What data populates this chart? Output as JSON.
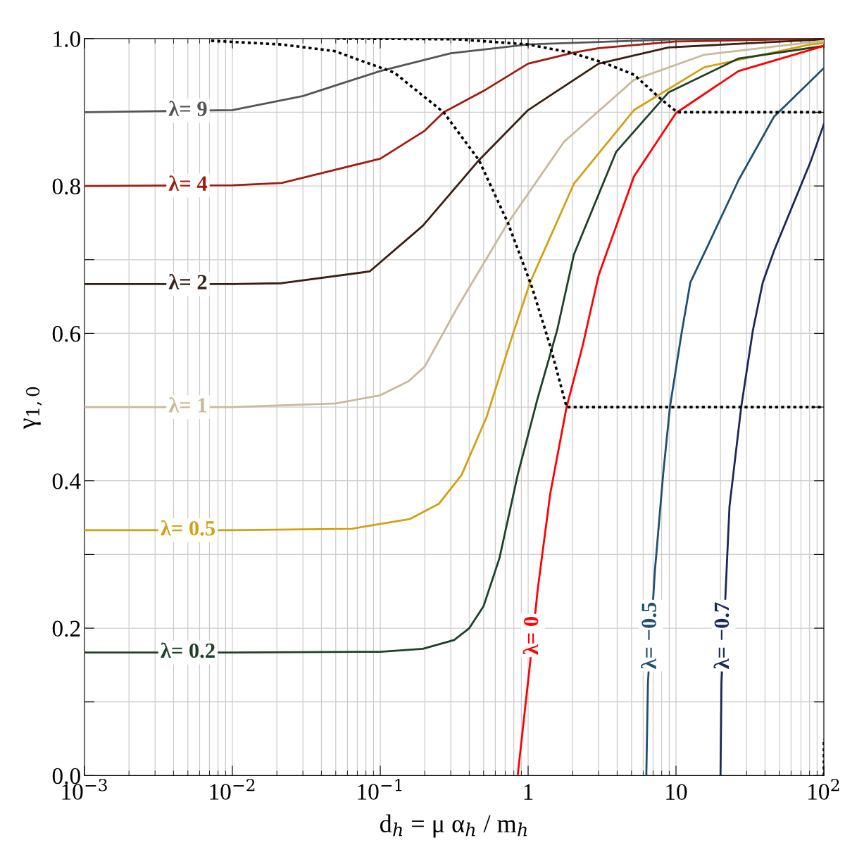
{
  "chart_data": {
    "type": "line",
    "xlabel": "d$_{h}$ = μ α$_{h}$ / m$_{h}$",
    "ylabel": "γ$_{1,0}$",
    "log": "x",
    "grid": true,
    "legend": false,
    "marker": "none",
    "line_style": "solid",
    "xlim": [
      0.001,
      100
    ],
    "ylim": [
      0,
      1
    ],
    "xticks": [
      {
        "value": 0.001,
        "label": "10$^{−3}$"
      },
      {
        "value": 0.01,
        "label": "10$^{−2}$"
      },
      {
        "value": 0.1,
        "label": "10$^{−1}$"
      },
      1,
      10,
      {
        "value": 100,
        "label": "10$^{2}$"
      }
    ],
    "yticks": [
      {
        "value": 0,
        "label": "0.0"
      },
      {
        "value": 0.1,
        "label": null
      },
      0.2,
      {
        "value": 0.3,
        "label": null
      },
      0.4,
      {
        "value": 0.5,
        "label": null
      },
      0.6,
      {
        "value": 0.7,
        "label": null
      },
      0.8,
      {
        "value": 0.9,
        "label": null
      },
      {
        "value": 1,
        "label": "1.0"
      }
    ],
    "series": [
      {
        "name": "λ= 9",
        "color": "#555555",
        "x": [
          0.001,
          0.01,
          0.03,
          0.1,
          0.3,
          1,
          10,
          100
        ],
        "values": [
          0.9,
          0.903,
          0.922,
          0.956,
          0.98,
          0.992,
          0.999,
          1.0
        ]
      },
      {
        "name": "λ= 4",
        "color": "#a01c10",
        "x": [
          0.001,
          0.01,
          0.0215,
          0.1,
          0.2,
          0.268,
          0.5,
          1,
          2.04,
          3,
          10,
          100
        ],
        "values": [
          0.8,
          0.801,
          0.804,
          0.837,
          0.875,
          0.9,
          0.929,
          0.966,
          0.981,
          0.987,
          0.996,
          1.0
        ]
      },
      {
        "name": "λ= 2",
        "color": "#3a1e12",
        "x": [
          0.001,
          0.01,
          0.0215,
          0.0848,
          0.194,
          0.465,
          1,
          3,
          8.9,
          100
        ],
        "values": [
          0.667,
          0.667,
          0.668,
          0.684,
          0.746,
          0.835,
          0.903,
          0.966,
          0.988,
          0.999
        ]
      },
      {
        "name": "λ= 1",
        "color": "#c8b99a",
        "x": [
          0.001,
          0.01,
          0.05,
          0.1,
          0.155,
          0.2,
          0.334,
          0.72,
          1.75,
          5.2,
          15.5,
          100
        ],
        "values": [
          0.5,
          0.5,
          0.505,
          0.516,
          0.535,
          0.555,
          0.636,
          0.748,
          0.86,
          0.944,
          0.978,
          0.997
        ]
      },
      {
        "name": "λ= 0.5",
        "color": "#d4a010",
        "x": [
          0.001,
          0.01,
          0.0645,
          0.158,
          0.25,
          0.355,
          0.525,
          0.78,
          1.03,
          2.04,
          5.2,
          15.5,
          81,
          100
        ],
        "values": [
          0.333,
          0.333,
          0.335,
          0.348,
          0.369,
          0.408,
          0.487,
          0.596,
          0.669,
          0.803,
          0.903,
          0.961,
          0.992,
          0.994
        ]
      },
      {
        "name": "λ= 0.2",
        "color": "#1e4028",
        "x": [
          0.001,
          0.01,
          0.1,
          0.194,
          0.316,
          0.4,
          0.5,
          0.64,
          0.85,
          1.16,
          1.57,
          2.04,
          3.93,
          8.9,
          26.5,
          100
        ],
        "values": [
          0.167,
          0.167,
          0.168,
          0.172,
          0.184,
          0.2,
          0.23,
          0.295,
          0.408,
          0.512,
          0.604,
          0.707,
          0.846,
          0.927,
          0.973,
          0.99
        ]
      },
      {
        "name": "λ= 0",
        "color": "#ff0000",
        "x": [
          0.85,
          1.03,
          1.16,
          1.41,
          1.82,
          2.33,
          3.0,
          5.2,
          10,
          26.5,
          100
        ],
        "values": [
          0,
          0.152,
          0.252,
          0.382,
          0.5,
          0.582,
          0.679,
          0.813,
          0.899,
          0.956,
          0.99
        ]
      },
      {
        "name": "λ= −0.5",
        "color": "#1f5070",
        "x": [
          6.3,
          6.46,
          7.2,
          8.18,
          9.1,
          10.9,
          12.5,
          16.5,
          26.5,
          46,
          100
        ],
        "values": [
          0,
          0.126,
          0.278,
          0.408,
          0.5,
          0.6,
          0.669,
          0.72,
          0.808,
          0.894,
          0.96
        ]
      },
      {
        "name": "λ= −0.7",
        "color": "#1a2858",
        "x": [
          20.0,
          20.3,
          23.0,
          27.6,
          33.1,
          38.6,
          46,
          81,
          100
        ],
        "values": [
          0,
          0.126,
          0.365,
          0.5,
          0.604,
          0.669,
          0.712,
          0.832,
          0.884
        ]
      },
      {
        "color": "#000000",
        "line_style": "dotted",
        "x": [
          0.00719,
          0.0215,
          0.049,
          0.124,
          0.268,
          0.465,
          0.73,
          1.06,
          1.41,
          1.82,
          100
        ],
        "values": [
          0.997,
          0.992,
          0.983,
          0.954,
          0.9,
          0.835,
          0.75,
          0.663,
          0.583,
          0.5,
          0.5
        ]
      },
      {
        "color": "#000000",
        "line_style": "dotted",
        "x": [
          0.0507,
          0.334,
          1,
          1.94,
          3.16,
          5.2,
          7.9,
          10.2,
          100
        ],
        "values": [
          1.0,
          0.999,
          0.992,
          0.981,
          0.968,
          0.951,
          0.918,
          0.9,
          0.9
        ]
      },
      {
        "color": "#000000",
        "line_style": "dotted",
        "x": [
          100,
          100
        ],
        "values": [
          0,
          0.05
        ]
      }
    ]
  }
}
